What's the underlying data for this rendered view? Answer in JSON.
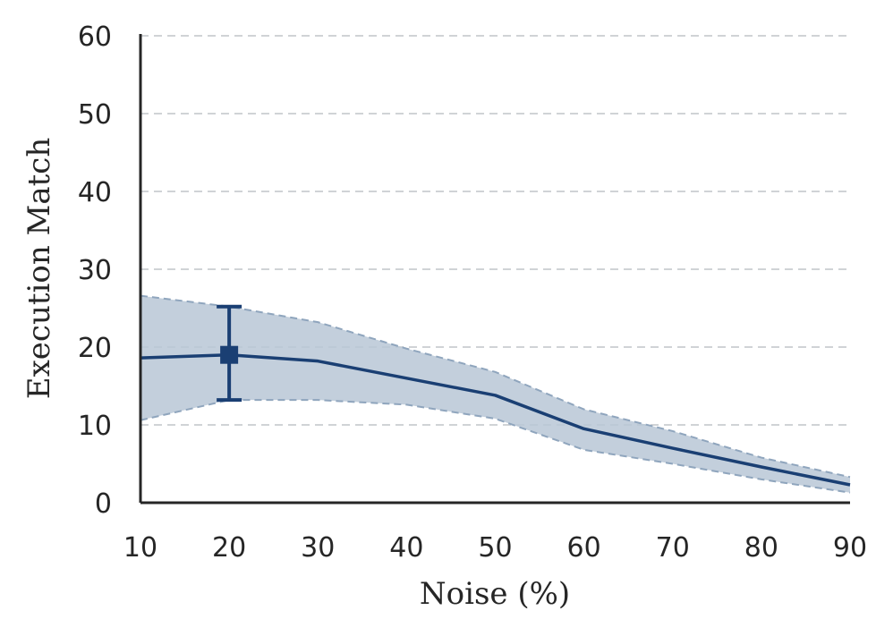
{
  "chart_data": {
    "type": "line",
    "xlabel": "Noise (%)",
    "ylabel": "Execution Match",
    "xlim": [
      10,
      90
    ],
    "ylim": [
      0,
      60
    ],
    "x": [
      10,
      20,
      30,
      40,
      50,
      60,
      70,
      80,
      90
    ],
    "x_ticks": [
      "10",
      "20",
      "30",
      "40",
      "50",
      "60",
      "70",
      "80",
      "90"
    ],
    "y_ticks": [
      "0",
      "10",
      "20",
      "30",
      "40",
      "50",
      "60"
    ],
    "grid": "horizontal dashed",
    "series": [
      {
        "values": [
          18.6,
          19.0,
          18.2,
          16.0,
          13.8,
          9.5,
          7.0,
          4.6,
          2.3
        ],
        "band_upper": [
          26.6,
          25.2,
          23.2,
          19.8,
          16.8,
          12.0,
          9.2,
          5.8,
          3.3
        ],
        "band_lower": [
          10.6,
          13.2,
          13.2,
          12.6,
          10.8,
          6.8,
          5.0,
          3.0,
          1.3
        ],
        "color": "#1a3f73",
        "band_color": "#b8c7d6"
      }
    ],
    "highlight_point": {
      "x": 20,
      "y": 19.0,
      "error_upper": 25.2,
      "error_lower": 13.2
    }
  }
}
